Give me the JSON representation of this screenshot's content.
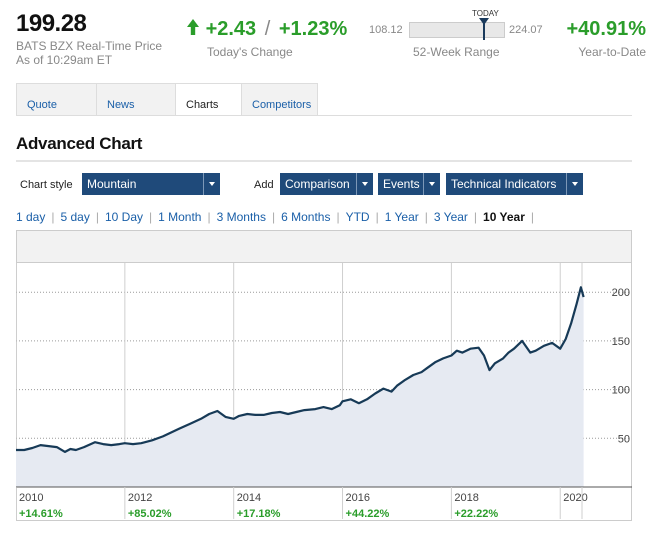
{
  "quote": {
    "price": "199.28",
    "exchange_line": "BATS BZX Real-Time Price",
    "as_of": "As of 10:29am ET",
    "change_abs": "+2.43",
    "change_sep": "/",
    "change_pct": "+1.23%",
    "change_label": "Today's Change",
    "change_icon": "arrow-up-icon",
    "range_low": "108.12",
    "range_high": "224.07",
    "range_today_label": "TODAY",
    "range_label": "52-Week Range",
    "ytd_value": "+40.91%",
    "ytd_label": "Year-to-Date"
  },
  "tabs": [
    {
      "label": "Quote",
      "active": false
    },
    {
      "label": "News",
      "active": false
    },
    {
      "label": "Charts",
      "active": true
    },
    {
      "label": "Competitors",
      "active": false
    }
  ],
  "section_title": "Advanced Chart",
  "controls": {
    "chart_style_label": "Chart style",
    "chart_style_value": "Mountain",
    "add_label": "Add",
    "comparison": "Comparison",
    "events": "Events",
    "technical_indicators": "Technical Indicators"
  },
  "periods": [
    {
      "label": "1 day",
      "active": false
    },
    {
      "label": "5 day",
      "active": false
    },
    {
      "label": "10 Day",
      "active": false
    },
    {
      "label": "1 Month",
      "active": false
    },
    {
      "label": "3 Months",
      "active": false
    },
    {
      "label": "6 Months",
      "active": false
    },
    {
      "label": "YTD",
      "active": false
    },
    {
      "label": "1 Year",
      "active": false
    },
    {
      "label": "3 Year",
      "active": false
    },
    {
      "label": "10 Year",
      "active": true
    }
  ],
  "colors": {
    "accent": "#1f4a7a",
    "positive": "#2a9d2a",
    "link": "#1a5fa8",
    "series_line": "#173a57",
    "series_fill": "#e6eaf2"
  },
  "chart_data": {
    "type": "area",
    "ylim": [
      0,
      230
    ],
    "yticks": [
      50,
      100,
      150,
      200
    ],
    "grid": true,
    "x_start": 2010.0,
    "x_end": 2020.4,
    "year_ticks": [
      {
        "year": "2010",
        "x": 2010,
        "return": "+14.61%"
      },
      {
        "year": "2012",
        "x": 2012,
        "return": "+85.02%"
      },
      {
        "year": "2014",
        "x": 2014,
        "return": "+17.18%"
      },
      {
        "year": "2016",
        "x": 2016,
        "return": "+44.22%"
      },
      {
        "year": "2018",
        "x": 2018,
        "return": "+22.22%"
      },
      {
        "year": "2020",
        "x": 2020,
        "return": ""
      }
    ],
    "series": [
      {
        "x": [
          2010.0,
          2010.15,
          2010.3,
          2010.45,
          2010.6,
          2010.75,
          2010.9,
          2011.0,
          2011.1,
          2011.25,
          2011.45,
          2011.6,
          2011.75,
          2011.9,
          2012.0,
          2012.15,
          2012.3,
          2012.5,
          2012.7,
          2012.85,
          2013.0,
          2013.2,
          2013.4,
          2013.55,
          2013.7,
          2013.85,
          2014.0,
          2014.1,
          2014.25,
          2014.4,
          2014.55,
          2014.7,
          2014.85,
          2015.0,
          2015.15,
          2015.3,
          2015.5,
          2015.65,
          2015.8,
          2015.95,
          2016.0,
          2016.15,
          2016.3,
          2016.45,
          2016.6,
          2016.75,
          2016.9,
          2017.0,
          2017.15,
          2017.3,
          2017.45,
          2017.55,
          2017.7,
          2017.85,
          2018.0,
          2018.1,
          2018.2,
          2018.35,
          2018.5,
          2018.6,
          2018.7,
          2018.8,
          2018.95,
          2019.05,
          2019.15,
          2019.3,
          2019.45,
          2019.55,
          2019.7,
          2019.85,
          2020.0,
          2020.1,
          2020.2,
          2020.3,
          2020.38,
          2020.43
        ],
        "values": [
          38,
          38,
          40,
          43,
          42,
          41,
          36,
          39,
          38,
          41,
          46,
          44,
          43,
          44,
          45,
          44,
          45,
          48,
          52,
          56,
          60,
          65,
          70,
          75,
          78,
          72,
          70,
          73,
          75,
          74,
          74,
          76,
          77,
          75,
          77,
          79,
          80,
          82,
          80,
          84,
          88,
          90,
          86,
          90,
          96,
          101,
          98,
          104,
          110,
          115,
          118,
          122,
          128,
          132,
          135,
          140,
          138,
          142,
          143,
          135,
          120,
          127,
          132,
          138,
          142,
          150,
          138,
          140,
          145,
          148,
          142,
          152,
          168,
          188,
          205,
          195
        ]
      }
    ]
  }
}
